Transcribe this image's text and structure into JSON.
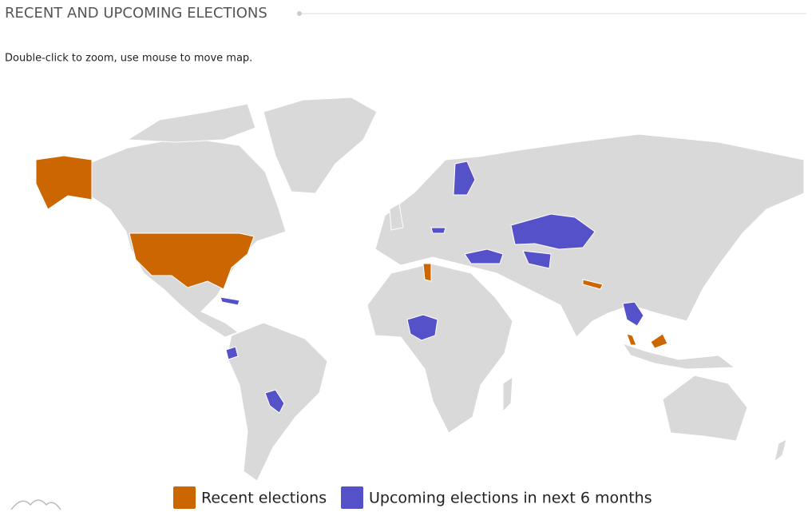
{
  "header": {
    "title": "RECENT AND UPCOMING ELECTIONS",
    "instruction": "Double-click to zoom, use mouse to move map."
  },
  "legend": {
    "items": [
      {
        "label": "Recent elections",
        "color": "#cc6600"
      },
      {
        "label": "Upcoming elections in next 6 months",
        "color": "#5551c9"
      }
    ]
  }
}
